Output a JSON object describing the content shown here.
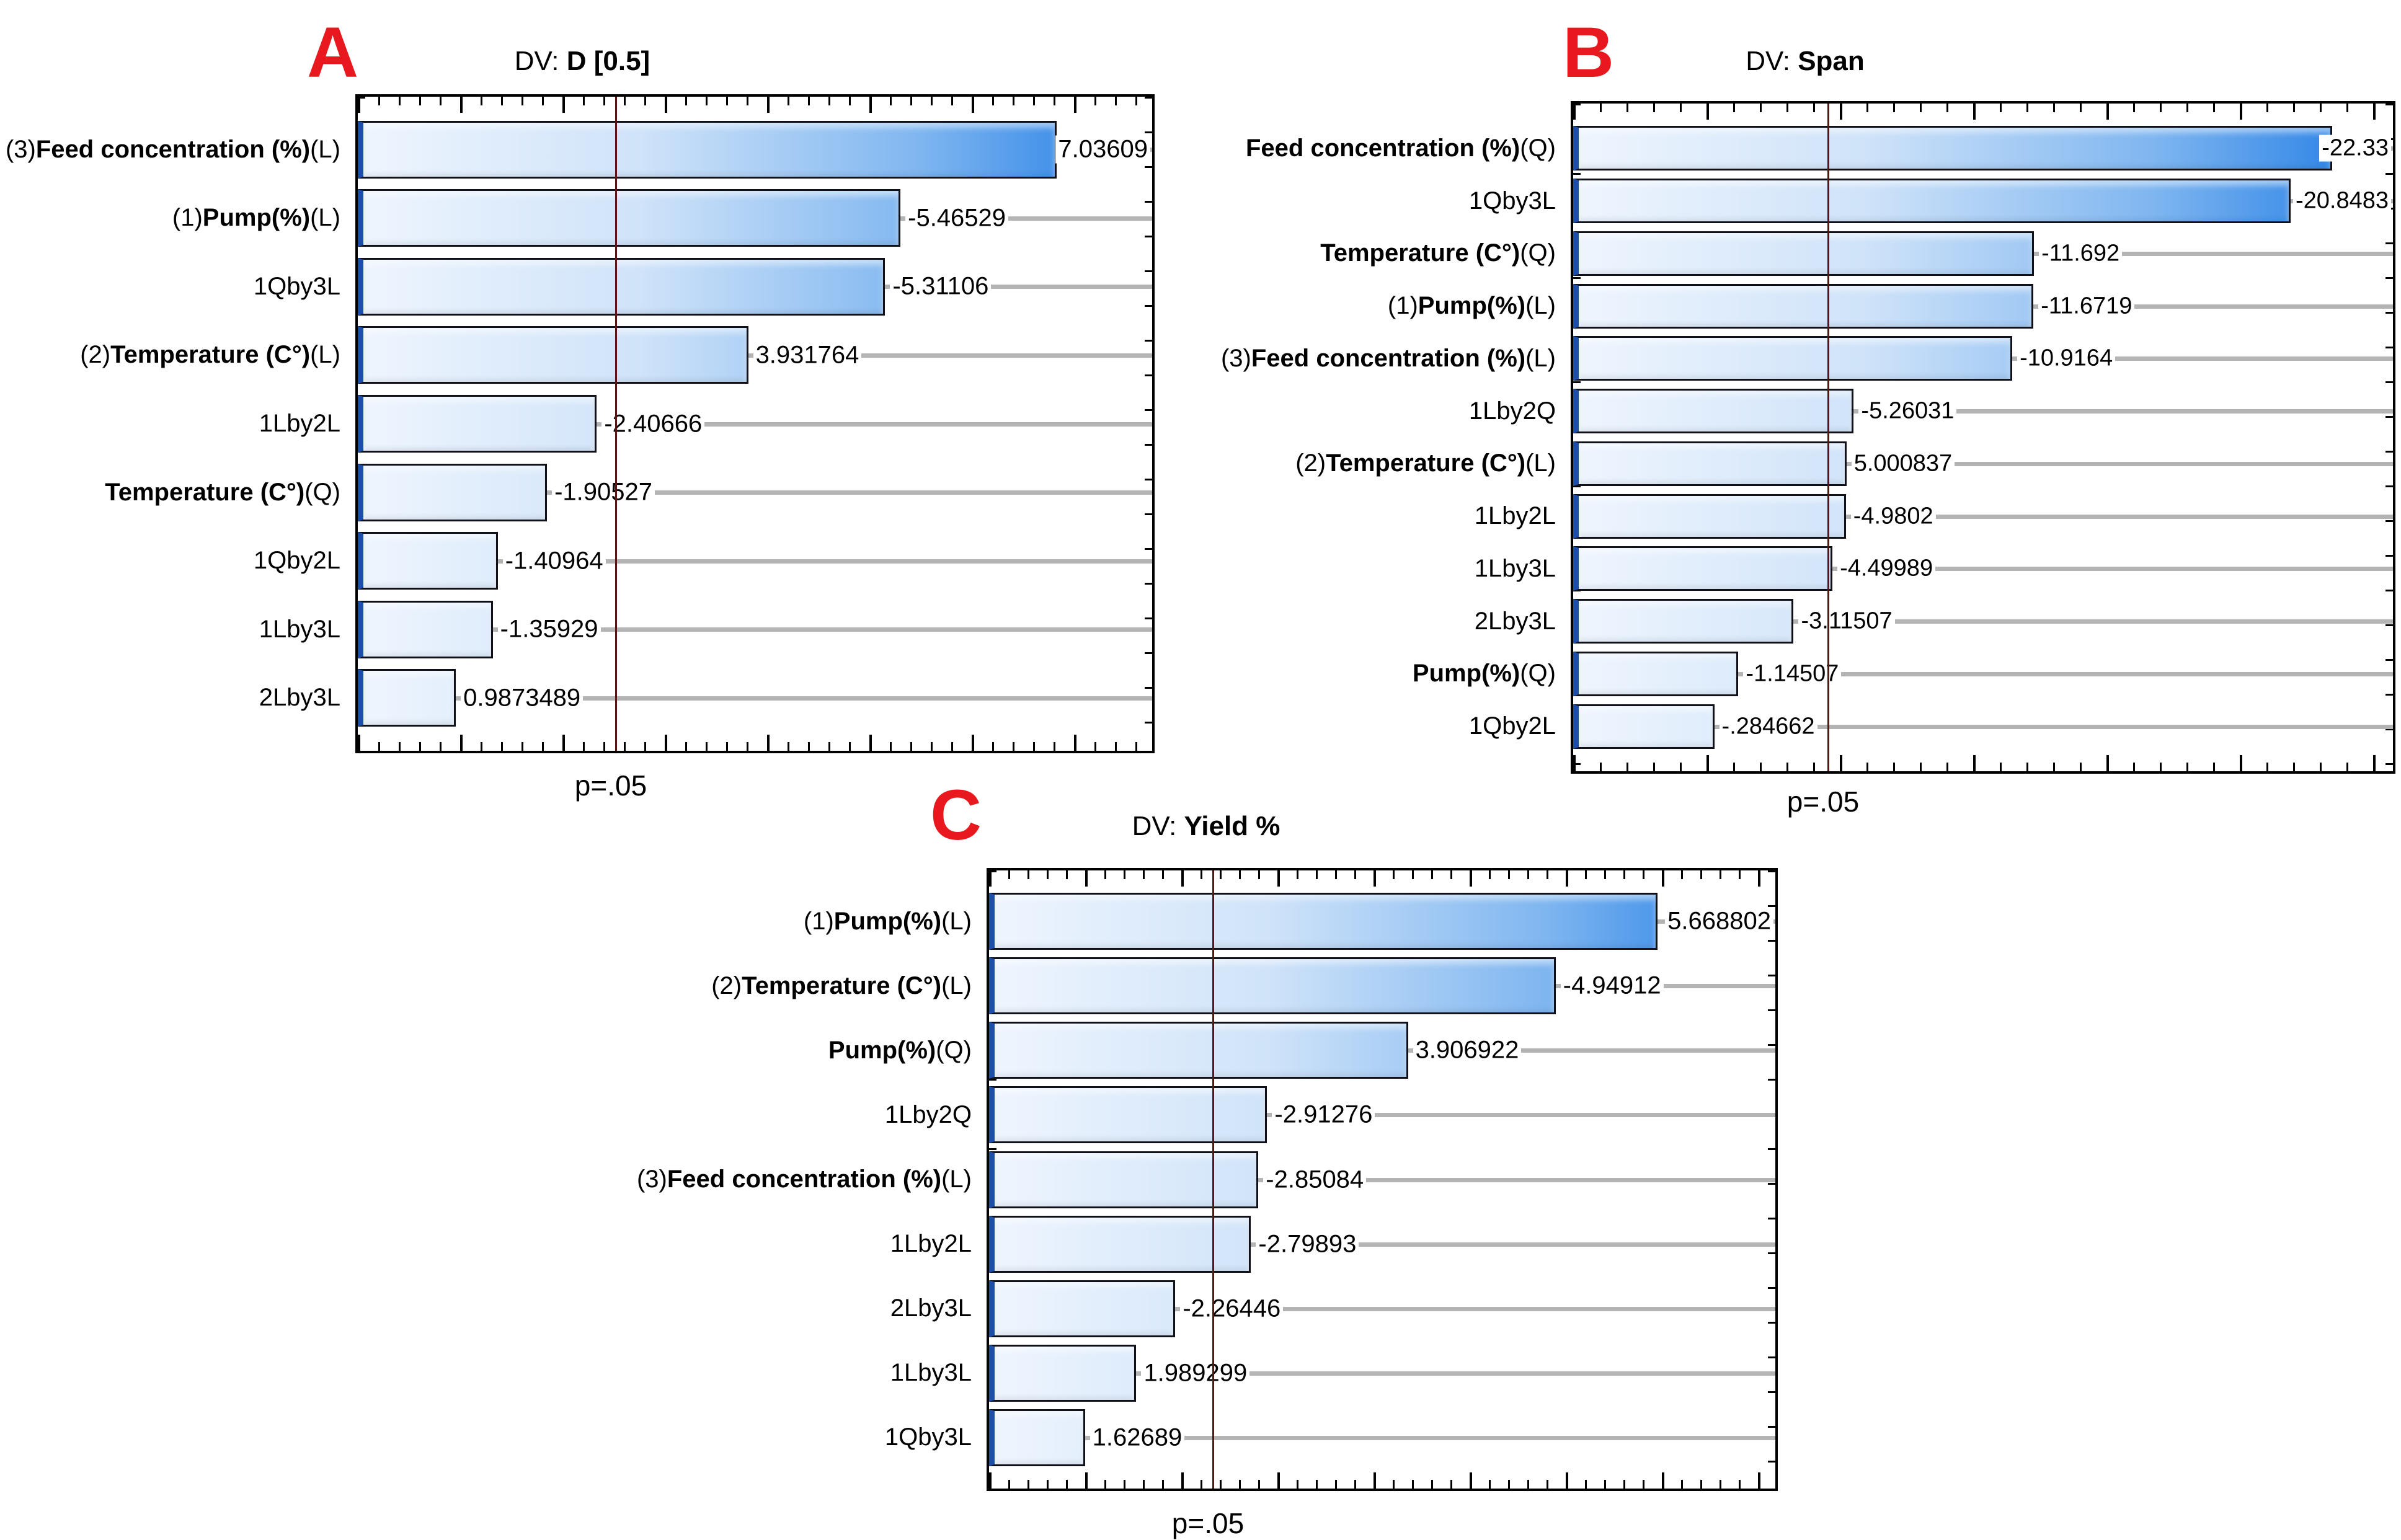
{
  "figure_type": "pareto-charts-of-standardized-effects",
  "colors": {
    "bar_gradient_start": "#eef5fe",
    "bar_gradient_mid": "#cfe3f9",
    "bar_gradient_deep": "#7fb6f0",
    "bar_gradient_end": "#1877e4",
    "bar_border": "#101018",
    "bar_left_edge": "#1d4fa8",
    "frame": "#000000",
    "reference_line_gray": "#b4b4b4",
    "p_line": "#5a1414",
    "panel_letter_red": "#e8191e",
    "text": "#000000",
    "background": "#ffffff"
  },
  "chart_data": [
    {
      "panel_letter": "A",
      "type": "bar",
      "orientation": "horizontal",
      "title": "DV: D [0.5]",
      "title_prefix": "DV: ",
      "title_emphasis": "D [0.5]",
      "xlim": [
        0,
        8
      ],
      "grid": false,
      "p_line": {
        "label": "p=.05",
        "value": 2.6
      },
      "bars": [
        {
          "label_prefix": "(3)",
          "label_main": "Feed concentration (%)",
          "label_suffix": "(L)",
          "bold": true,
          "value": 7.03609,
          "value_label": "7.03609"
        },
        {
          "label_prefix": "(1)",
          "label_main": "Pump(%)",
          "label_suffix": "(L)",
          "bold": true,
          "value": -5.46529,
          "value_label": "-5.46529"
        },
        {
          "label_prefix": "",
          "label_main": "1Qby3L",
          "label_suffix": "",
          "bold": false,
          "value": -5.31106,
          "value_label": "-5.31106"
        },
        {
          "label_prefix": "(2)",
          "label_main": "Temperature (C°)",
          "label_suffix": "(L)",
          "bold": true,
          "value": 3.931764,
          "value_label": "3.931764"
        },
        {
          "label_prefix": "",
          "label_main": "1Lby2L",
          "label_suffix": "",
          "bold": false,
          "value": -2.40666,
          "value_label": "-2.40666"
        },
        {
          "label_prefix": "",
          "label_main": "Temperature (C°)",
          "label_suffix": "(Q)",
          "bold": true,
          "value": -1.90527,
          "value_label": "-1.90527"
        },
        {
          "label_prefix": "",
          "label_main": "1Qby2L",
          "label_suffix": "",
          "bold": false,
          "value": -1.40964,
          "value_label": "-1.40964"
        },
        {
          "label_prefix": "",
          "label_main": "1Lby3L",
          "label_suffix": "",
          "bold": false,
          "value": -1.35929,
          "value_label": "-1.35929"
        },
        {
          "label_prefix": "",
          "label_main": "2Lby3L",
          "label_suffix": "",
          "bold": false,
          "value": 0.9873489,
          "value_label": "0.9873489"
        }
      ]
    },
    {
      "panel_letter": "B",
      "type": "bar",
      "orientation": "horizontal",
      "title": "DV: Span",
      "title_prefix": "DV: ",
      "title_emphasis": "Span",
      "xlim": [
        -4.75,
        24.5
      ],
      "grid": false,
      "p_line": {
        "label": "p=.05",
        "value": 4.35
      },
      "bars": [
        {
          "label_prefix": "",
          "label_main": "Feed concentration (%)",
          "label_suffix": "(Q)",
          "bold": true,
          "value": -22.33,
          "value_label": "-22.33"
        },
        {
          "label_prefix": "",
          "label_main": "1Qby3L",
          "label_suffix": "",
          "bold": false,
          "value": -20.8483,
          "value_label": "-20.8483"
        },
        {
          "label_prefix": "",
          "label_main": "Temperature (C°)",
          "label_suffix": "(Q)",
          "bold": true,
          "value": -11.692,
          "value_label": "-11.692"
        },
        {
          "label_prefix": "(1)",
          "label_main": "Pump(%)",
          "label_suffix": "(L)",
          "bold": true,
          "value": -11.6719,
          "value_label": "-11.6719"
        },
        {
          "label_prefix": "(3)",
          "label_main": "Feed concentration (%)",
          "label_suffix": "(L)",
          "bold": true,
          "value": -10.9164,
          "value_label": "-10.9164"
        },
        {
          "label_prefix": "",
          "label_main": "1Lby2Q",
          "label_suffix": "",
          "bold": false,
          "value": -5.26031,
          "value_label": "-5.26031"
        },
        {
          "label_prefix": "(2)",
          "label_main": "Temperature (C°)",
          "label_suffix": "(L)",
          "bold": true,
          "value": 5.000837,
          "value_label": "5.000837"
        },
        {
          "label_prefix": "",
          "label_main": "1Lby2L",
          "label_suffix": "",
          "bold": false,
          "value": -4.9802,
          "value_label": "-4.9802"
        },
        {
          "label_prefix": "",
          "label_main": "1Lby3L",
          "label_suffix": "",
          "bold": false,
          "value": -4.49989,
          "value_label": "-4.49989"
        },
        {
          "label_prefix": "",
          "label_main": "2Lby3L",
          "label_suffix": "",
          "bold": false,
          "value": -3.11507,
          "value_label": "-3.11507"
        },
        {
          "label_prefix": "",
          "label_main": "Pump(%)",
          "label_suffix": "(Q)",
          "bold": true,
          "value": -1.14507,
          "value_label": "-1.14507"
        },
        {
          "label_prefix": "",
          "label_main": "1Qby2L",
          "label_suffix": "",
          "bold": false,
          "value": -0.284662,
          "value_label": "-.284662"
        }
      ]
    },
    {
      "panel_letter": "C",
      "type": "bar",
      "orientation": "horizontal",
      "title": "DV: Yield %",
      "title_prefix": "DV: ",
      "title_emphasis": "Yield %",
      "xlim": [
        0.95,
        6.5
      ],
      "grid": false,
      "p_line": {
        "label": "p=.05",
        "value": 2.53
      },
      "bars": [
        {
          "label_prefix": "(1)",
          "label_main": "Pump(%)",
          "label_suffix": "(L)",
          "bold": true,
          "value": 5.668802,
          "value_label": "5.668802"
        },
        {
          "label_prefix": "(2)",
          "label_main": "Temperature (C°)",
          "label_suffix": "(L)",
          "bold": true,
          "value": -4.94912,
          "value_label": "-4.94912"
        },
        {
          "label_prefix": "",
          "label_main": "Pump(%)",
          "label_suffix": "(Q)",
          "bold": true,
          "value": 3.906922,
          "value_label": "3.906922"
        },
        {
          "label_prefix": "",
          "label_main": "1Lby2Q",
          "label_suffix": "",
          "bold": false,
          "value": -2.91276,
          "value_label": "-2.91276"
        },
        {
          "label_prefix": "(3)",
          "label_main": "Feed concentration (%)",
          "label_suffix": "(L)",
          "bold": true,
          "value": -2.85084,
          "value_label": "-2.85084"
        },
        {
          "label_prefix": "",
          "label_main": "1Lby2L",
          "label_suffix": "",
          "bold": false,
          "value": -2.79893,
          "value_label": "-2.79893"
        },
        {
          "label_prefix": "",
          "label_main": "2Lby3L",
          "label_suffix": "",
          "bold": false,
          "value": -2.26446,
          "value_label": "-2.26446"
        },
        {
          "label_prefix": "",
          "label_main": "1Lby3L",
          "label_suffix": "",
          "bold": false,
          "value": 1.989299,
          "value_label": "1.989299"
        },
        {
          "label_prefix": "",
          "label_main": "1Qby3L",
          "label_suffix": "",
          "bold": false,
          "value": 1.62689,
          "value_label": "1.62689"
        }
      ]
    }
  ]
}
